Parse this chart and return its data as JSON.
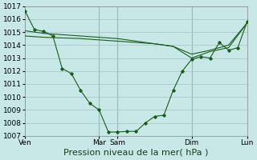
{
  "background_color": "#c8e8e8",
  "grid_color": "#a8c8c8",
  "line_color": "#1a5c1a",
  "xlabel": "Pression niveau de la mer( hPa )",
  "ylim": [
    1007,
    1017
  ],
  "yticks": [
    1007,
    1008,
    1009,
    1010,
    1011,
    1012,
    1013,
    1014,
    1015,
    1016,
    1017
  ],
  "xtick_labels": [
    "Ven",
    "Mar",
    "Sam",
    "Dim",
    "Lun"
  ],
  "xtick_positions": [
    0,
    48,
    60,
    108,
    144
  ],
  "xlim": [
    0,
    144
  ],
  "vline_positions": [
    48,
    60,
    108,
    144
  ],
  "line1_x": [
    0,
    6,
    12,
    18,
    24,
    30,
    36,
    42,
    48,
    54,
    60,
    66,
    72,
    78,
    84,
    90,
    96,
    102,
    108,
    114,
    120,
    126,
    132,
    138,
    144
  ],
  "line1_y": [
    1016.6,
    1015.2,
    1015.05,
    1014.7,
    1012.2,
    1011.8,
    1010.5,
    1009.5,
    1009.0,
    1007.3,
    1007.3,
    1007.35,
    1007.35,
    1008.0,
    1008.5,
    1008.6,
    1010.5,
    1012.0,
    1012.9,
    1013.1,
    1013.0,
    1014.2,
    1013.6,
    1013.8,
    1015.8
  ],
  "line2_x": [
    0,
    12,
    24,
    36,
    48,
    60,
    72,
    84,
    96,
    108,
    120,
    132,
    144
  ],
  "line2_y": [
    1015.1,
    1014.9,
    1014.8,
    1014.7,
    1014.6,
    1014.5,
    1014.3,
    1014.1,
    1013.9,
    1013.3,
    1013.6,
    1014.0,
    1015.7
  ],
  "line3_x": [
    0,
    12,
    24,
    36,
    48,
    60,
    72,
    84,
    96,
    108,
    120,
    132,
    144
  ],
  "line3_y": [
    1014.7,
    1014.6,
    1014.55,
    1014.5,
    1014.4,
    1014.3,
    1014.2,
    1014.1,
    1013.9,
    1013.0,
    1013.5,
    1013.8,
    1015.7
  ],
  "xlabel_fontsize": 8,
  "tick_fontsize": 6.5
}
